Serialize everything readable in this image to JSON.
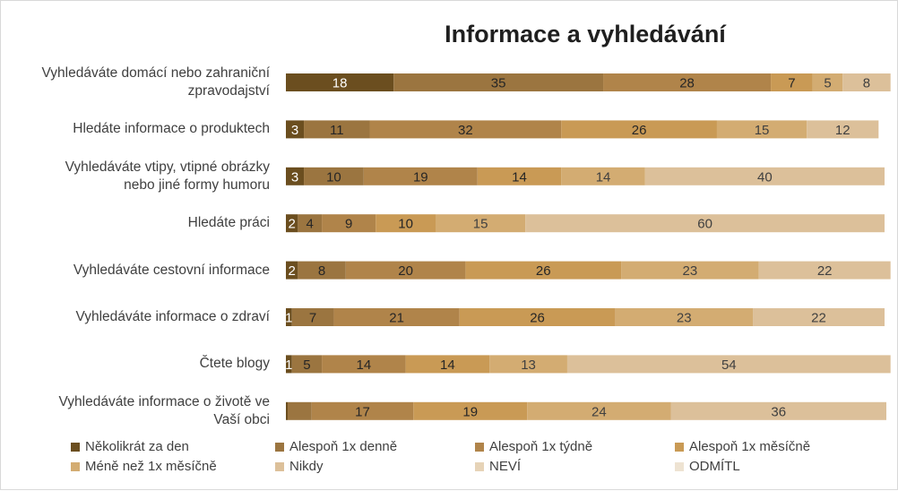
{
  "chart_data": {
    "type": "bar",
    "orientation": "horizontal",
    "stacked": true,
    "title": "Informace a vyhledávání",
    "xlabel": "",
    "ylabel": "",
    "xlim": [
      0,
      100
    ],
    "grid": false,
    "legend_position": "bottom",
    "categories": [
      "Vyhledáváte domácí nebo zahraniční zpravodajství",
      "Hledáte informace o produktech",
      "Vyhledáváte vtipy, vtipné obrázky nebo jiné formy humoru",
      "Hledáte práci",
      "Vyhledáváte cestovní informace",
      "Vyhledáváte informace o zdraví",
      "Čtete blogy",
      "Vyhledáváte informace o životě ve Vaší obci"
    ],
    "category_lines": [
      [
        "Vyhledáváte domácí nebo zahraniční",
        "zpravodajství"
      ],
      [
        "Hledáte informace o produktech"
      ],
      [
        "Vyhledáváte vtipy, vtipné obrázky",
        "nebo jiné formy humoru"
      ],
      [
        "Hledáte práci"
      ],
      [
        "Vyhledáváte cestovní informace"
      ],
      [
        "Vyhledáváte informace o zdraví"
      ],
      [
        "Čtete blogy"
      ],
      [
        "Vyhledáváte informace o životě ve",
        "Vaší obci"
      ]
    ],
    "series": [
      {
        "name": "Několikrát za den",
        "color": "#6b4e1f",
        "text_color": "#ffffff",
        "values": [
          18,
          3,
          3,
          2,
          2,
          1,
          1,
          0.3
        ]
      },
      {
        "name": "Alespoň 1x denně",
        "color": "#9b7540",
        "text_color": "#262626",
        "values": [
          35,
          11,
          10,
          4,
          8,
          7,
          5,
          4
        ]
      },
      {
        "name": "Alespoň 1x týdně",
        "color": "#b0844a",
        "text_color": "#262626",
        "values": [
          28,
          32,
          19,
          9,
          20,
          21,
          14,
          17
        ]
      },
      {
        "name": "Alespoň 1x měsíčně",
        "color": "#c99a55",
        "text_color": "#262626",
        "values": [
          7,
          26,
          14,
          10,
          26,
          26,
          14,
          19
        ]
      },
      {
        "name": "Méně než 1x měsíčně",
        "color": "#d3ac72",
        "text_color": "#404040",
        "values": [
          5,
          15,
          14,
          15,
          23,
          23,
          13,
          24
        ]
      },
      {
        "name": "Nikdy",
        "color": "#dcc09a",
        "text_color": "#404040",
        "values": [
          8,
          12,
          40,
          60,
          22,
          22,
          54,
          36
        ]
      },
      {
        "name": "NEVÍ",
        "color": "#e6d3b7",
        "text_color": "#404040",
        "values": [
          0,
          0,
          0,
          0,
          0,
          0,
          0,
          0
        ]
      },
      {
        "name": "ODMÍTL",
        "color": "#eee3d2",
        "text_color": "#404040",
        "values": [
          0,
          0,
          0,
          0,
          0,
          0,
          0,
          0
        ]
      }
    ],
    "data_labels": [
      [
        "18",
        "35",
        "28",
        "7",
        "5",
        "8",
        "",
        ""
      ],
      [
        "3",
        "11",
        "32",
        "26",
        "15",
        "12",
        "",
        ""
      ],
      [
        "3",
        "10",
        "19",
        "14",
        "14",
        "40",
        "",
        ""
      ],
      [
        "2",
        "4",
        "9",
        "10",
        "15",
        "60",
        "",
        ""
      ],
      [
        "2",
        "8",
        "20",
        "26",
        "23",
        "22",
        "",
        ""
      ],
      [
        "1",
        "7",
        "21",
        "26",
        "23",
        "22",
        "",
        ""
      ],
      [
        "1",
        "5",
        "14",
        "14",
        "13",
        "54",
        "",
        ""
      ],
      [
        "",
        "",
        "17",
        "19",
        "24",
        "36",
        "",
        ""
      ]
    ]
  }
}
